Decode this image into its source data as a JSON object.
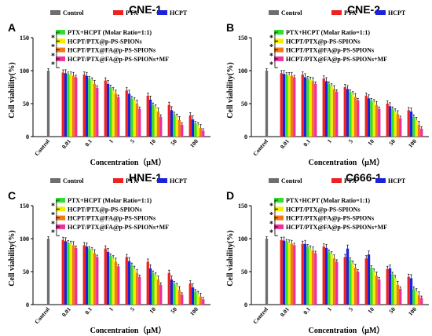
{
  "colors": {
    "Control": "#6e6e6e",
    "PTX": "#ee2222",
    "HCPT": "#1a22dd",
    "PTX+HCPT (Molar Ratio=1:1)": "#33dd33",
    "HCPT/PTX@p-PS-SPIONs": "#f2f000",
    "HCPT/PTX@FA@p-PS-SPIONs": "#f07a1a",
    "HCPT/PTX@FA@p-PS-SPIONs+MF": "#ee2f9c"
  },
  "chart_data": [
    {
      "type": "bar",
      "panel": "A",
      "title": "CNE-1",
      "xlabel": "Concentration（μM）",
      "ylabel": "Cell viability(%)",
      "ylim": [
        0,
        150
      ],
      "yticks": [
        0,
        50,
        100,
        150
      ],
      "categories": [
        "Control",
        "0.01",
        "0.1",
        "1",
        "5",
        "10",
        "50",
        "100"
      ],
      "significance": [
        "*",
        "*",
        "*",
        "*"
      ],
      "series": [
        {
          "name": "Control",
          "values": [
            100,
            null,
            null,
            null,
            null,
            null,
            null,
            null
          ]
        },
        {
          "name": "PTX",
          "values": [
            null,
            97,
            94,
            85,
            70,
            62,
            48,
            32
          ]
        },
        {
          "name": "HCPT",
          "values": [
            null,
            96,
            92,
            80,
            65,
            56,
            40,
            26
          ]
        },
        {
          "name": "PTX+HCPT (Molar Ratio=1:1)",
          "values": [
            null,
            95,
            88,
            75,
            58,
            48,
            34,
            20
          ]
        },
        {
          "name": "HCPT/PTX@p-PS-SPIONs",
          "values": [
            null,
            94,
            85,
            70,
            55,
            44,
            30,
            17
          ]
        },
        {
          "name": "HCPT/PTX@FA@p-PS-SPIONs",
          "values": [
            null,
            92,
            80,
            65,
            50,
            38,
            25,
            13
          ]
        },
        {
          "name": "HCPT/PTX@FA@p-PS-SPIONs+MF",
          "values": [
            null,
            90,
            74,
            60,
            42,
            30,
            18,
            9
          ]
        }
      ]
    },
    {
      "type": "bar",
      "panel": "B",
      "title": "CNE-2",
      "xlabel": "Concentration（μM）",
      "ylabel": "Cell viability(%)",
      "ylim": [
        0,
        150
      ],
      "yticks": [
        0,
        50,
        100,
        150
      ],
      "categories": [
        "Control",
        "0.01",
        "0.1",
        "1",
        "5",
        "10",
        "50",
        "100"
      ],
      "significance": [
        "*",
        "*",
        "*",
        "*"
      ],
      "series": [
        {
          "name": "Control",
          "values": [
            100,
            null,
            null,
            null,
            null,
            null,
            null,
            null
          ]
        },
        {
          "name": "PTX",
          "values": [
            null,
            96,
            94,
            88,
            75,
            62,
            50,
            40
          ]
        },
        {
          "name": "HCPT",
          "values": [
            null,
            95,
            90,
            84,
            72,
            58,
            46,
            38
          ]
        },
        {
          "name": "PTX+HCPT (Molar Ratio=1:1)",
          "values": [
            null,
            94,
            88,
            80,
            68,
            55,
            42,
            30
          ]
        },
        {
          "name": "HCPT/PTX@p-PS-SPIONs",
          "values": [
            null,
            93,
            86,
            76,
            64,
            52,
            38,
            25
          ]
        },
        {
          "name": "HCPT/PTX@FA@p-PS-SPIONs",
          "values": [
            null,
            92,
            84,
            72,
            60,
            48,
            34,
            18
          ]
        },
        {
          "name": "HCPT/PTX@FA@p-PS-SPIONs+MF",
          "values": [
            null,
            90,
            80,
            68,
            55,
            42,
            28,
            12
          ]
        }
      ]
    },
    {
      "type": "bar",
      "panel": "C",
      "title": "HNE-1",
      "xlabel": "Concentration（μM）",
      "ylabel": "Cell viability(%)",
      "ylim": [
        0,
        150
      ],
      "yticks": [
        0,
        50,
        100,
        150
      ],
      "categories": [
        "Control",
        "0.01",
        "0.1",
        "1",
        "5",
        "10",
        "50",
        "100"
      ],
      "significance": [
        "*",
        "*",
        "*",
        "*"
      ],
      "series": [
        {
          "name": "Control",
          "values": [
            100,
            null,
            null,
            null,
            null,
            null,
            null,
            null
          ]
        },
        {
          "name": "PTX",
          "values": [
            null,
            98,
            90,
            85,
            72,
            65,
            48,
            32
          ]
        },
        {
          "name": "HCPT",
          "values": [
            null,
            96,
            88,
            80,
            66,
            55,
            38,
            26
          ]
        },
        {
          "name": "PTX+HCPT (Molar Ratio=1:1)",
          "values": [
            null,
            94,
            85,
            74,
            60,
            48,
            32,
            20
          ]
        },
        {
          "name": "HCPT/PTX@p-PS-SPIONs",
          "values": [
            null,
            92,
            82,
            70,
            54,
            44,
            28,
            16
          ]
        },
        {
          "name": "HCPT/PTX@FA@p-PS-SPIONs",
          "values": [
            null,
            90,
            78,
            65,
            48,
            38,
            22,
            12
          ]
        },
        {
          "name": "HCPT/PTX@FA@p-PS-SPIONs+MF",
          "values": [
            null,
            86,
            72,
            58,
            42,
            30,
            15,
            8
          ]
        }
      ]
    },
    {
      "type": "bar",
      "panel": "D",
      "title": "C666-1",
      "xlabel": "Concentration（μM）",
      "ylabel": "Cell viability(%)",
      "ylim": [
        0,
        150
      ],
      "yticks": [
        0,
        50,
        100,
        150
      ],
      "categories": [
        "Control",
        "0.01",
        "0.1",
        "1",
        "5",
        "10",
        "50",
        "100"
      ],
      "significance": [
        "*",
        "*",
        "*",
        "*"
      ],
      "series": [
        {
          "name": "Control",
          "values": [
            100,
            null,
            null,
            null,
            null,
            null,
            null,
            null
          ]
        },
        {
          "name": "PTX",
          "values": [
            null,
            98,
            92,
            88,
            72,
            70,
            54,
            42
          ]
        },
        {
          "name": "HCPT",
          "values": [
            null,
            97,
            92,
            86,
            85,
            76,
            55,
            40
          ]
        },
        {
          "name": "PTX+HCPT (Molar Ratio=1:1)",
          "values": [
            null,
            96,
            88,
            80,
            68,
            56,
            46,
            24
          ]
        },
        {
          "name": "HCPT/PTX@p-PS-SPIONs",
          "values": [
            null,
            94,
            85,
            76,
            62,
            50,
            40,
            20
          ]
        },
        {
          "name": "HCPT/PTX@FA@p-PS-SPIONs",
          "values": [
            null,
            92,
            82,
            70,
            56,
            44,
            30,
            14
          ]
        },
        {
          "name": "HCPT/PTX@FA@p-PS-SPIONs+MF",
          "values": [
            null,
            90,
            78,
            65,
            50,
            38,
            24,
            10
          ]
        }
      ]
    }
  ]
}
